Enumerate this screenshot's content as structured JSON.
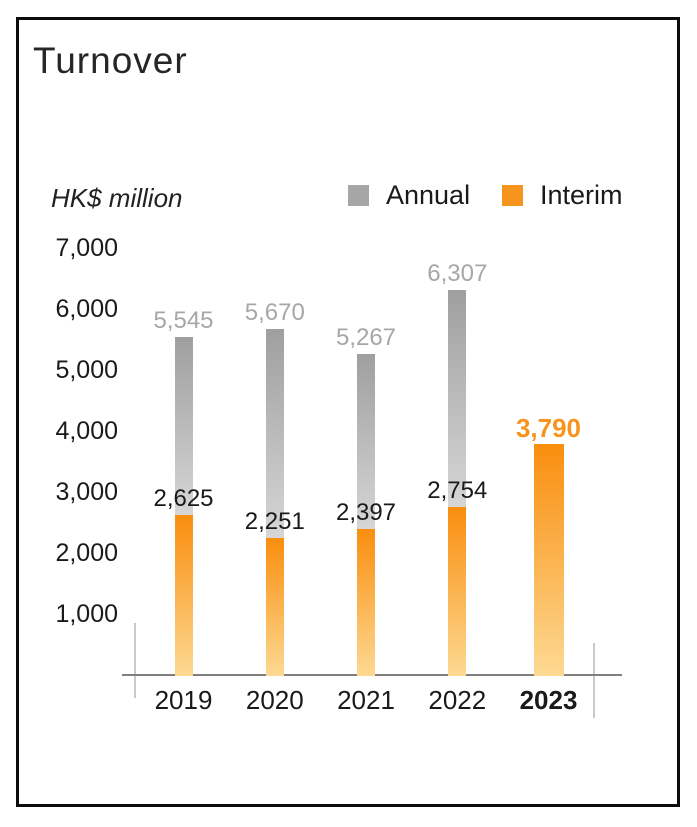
{
  "chart_data": {
    "type": "bar",
    "title": "Turnover",
    "unit_label": "HK$ million",
    "categories": [
      "2019",
      "2020",
      "2021",
      "2022",
      "2023"
    ],
    "emphasized_category": "2023",
    "series": [
      {
        "name": "Annual",
        "color": "#a6a6a6",
        "values": [
          5545,
          5670,
          5267,
          6307,
          null
        ],
        "labels": [
          "5,545",
          "5,670",
          "5,267",
          "6,307",
          null
        ]
      },
      {
        "name": "Interim",
        "color": "#f7941e",
        "values": [
          2625,
          2251,
          2397,
          2754,
          3790
        ],
        "labels": [
          "2,625",
          "2,251",
          "2,397",
          "2,754",
          "3,790"
        ]
      }
    ],
    "ylim": [
      0,
      7000
    ],
    "ytick_step": 1000,
    "ytick_labels": [
      "7,000",
      "6,000",
      "5,000",
      "4,000",
      "3,000",
      "2,000",
      "1,000"
    ],
    "grid": false,
    "legend_position": "top-right",
    "bar_style": "stacked, vertical gradient fading toward baseline",
    "colors": {
      "annual_swatch": "#a6a6a6",
      "interim_swatch": "#f7941e",
      "annual_value_label": "#a7a7a7",
      "interim_value_label": "#1a1a1a",
      "emphasized_value_label": "#f7941e",
      "axis_line": "#7f7f7f",
      "end_tick_lines": "#c9c9c9",
      "gray_gradient_top": "#9f9f9f",
      "gray_gradient_bottom": "#d6d6d6",
      "orange_gradient_top": "#f98e0e",
      "orange_gradient_bottom": "#fdd992"
    }
  }
}
